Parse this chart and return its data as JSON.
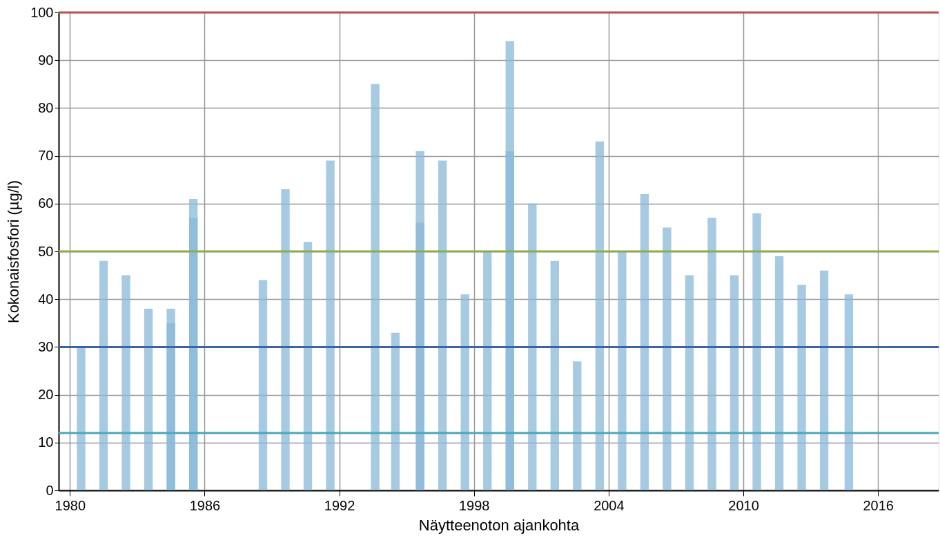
{
  "chart_data": {
    "type": "bar",
    "xlabel": "Näytteenoton ajankohta",
    "ylabel": "Kokonaisfosfori (µg/l)",
    "x": [
      1980.5,
      1981.5,
      1982.5,
      1983.5,
      1984.5,
      1985.5,
      1988.6,
      1989.6,
      1990.6,
      1991.6,
      1993.6,
      1994.5,
      1995.6,
      1996.6,
      1997.6,
      1998.6,
      1999.6,
      2000.6,
      2001.6,
      2002.6,
      2003.6,
      2004.6,
      2005.6,
      2006.6,
      2007.6,
      2008.6,
      2009.6,
      2010.6,
      2011.6,
      2012.6,
      2013.6,
      2014.7
    ],
    "series": [
      {
        "color": "#8ab8da",
        "values": [
          30,
          48,
          45,
          38,
          38,
          61,
          44,
          63,
          52,
          69,
          85,
          33,
          71,
          69,
          41,
          50,
          94,
          60,
          48,
          27,
          73,
          50,
          62,
          55,
          45,
          57,
          45,
          58,
          49,
          43,
          46,
          41
        ]
      },
      {
        "color": "#8ab8da",
        "x": [
          1984.5,
          1985.5,
          1995.6,
          1999.6
        ],
        "values": [
          35,
          57,
          56,
          71
        ]
      }
    ],
    "xlim": [
      1979.5,
      2018.7
    ],
    "xticks": [
      1980,
      1986,
      1992,
      1998,
      2004,
      2010,
      2016
    ],
    "ylim": [
      0,
      100
    ],
    "yticks": [
      0,
      10,
      20,
      30,
      40,
      50,
      60,
      70,
      80,
      90,
      100
    ],
    "grid": true,
    "ref_lines": [
      {
        "axis": "y",
        "value": 100,
        "color": "#c0504d"
      },
      {
        "axis": "y",
        "value": 50,
        "color": "#8fac4c"
      },
      {
        "axis": "y",
        "value": 30,
        "color": "#3d65a5"
      },
      {
        "axis": "y",
        "value": 12,
        "color": "#4aa6b8"
      }
    ]
  }
}
